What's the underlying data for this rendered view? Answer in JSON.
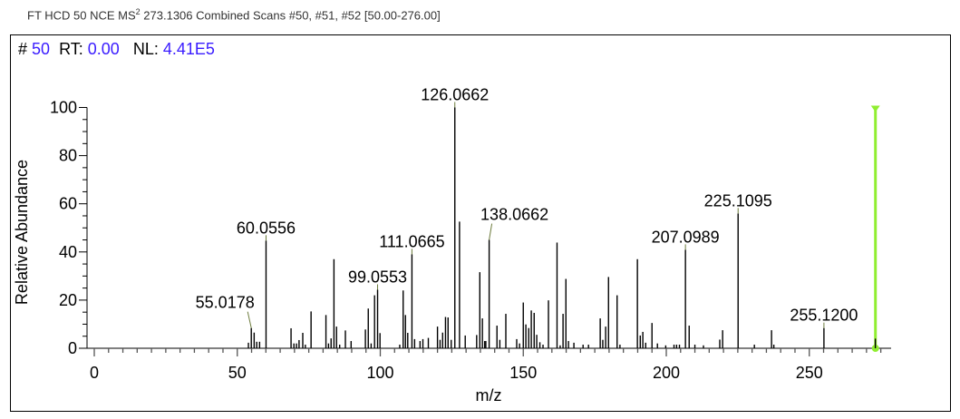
{
  "header": {
    "caption_prefix": "FT HCD 50 NCE MS",
    "caption_sup": "2",
    "caption_suffix": " 273.1306 Combined Scans #50, #51, #52 [50.00-276.00]"
  },
  "scan_info": {
    "scan_label": "#",
    "scan_value": "50",
    "rt_label": "RT:",
    "rt_value": "0.00",
    "nl_label": "NL:",
    "nl_value": "4.41E5"
  },
  "colors": {
    "peak": "#000000",
    "value_text": "#3a1cff",
    "precursor_marker": "#90ee30",
    "connector": "#6b7a3a"
  },
  "chart_data": {
    "type": "bar",
    "subtype": "mass-spectrum-stick",
    "xlabel": "m/z",
    "ylabel": "Relative Abundance",
    "xlim": [
      -3,
      278.6
    ],
    "ylim": [
      0,
      100
    ],
    "x_ticks": [
      "0",
      "50",
      "100",
      "150",
      "200",
      "250"
    ],
    "y_ticks": [
      "0",
      "20",
      "40",
      "60",
      "80",
      "100"
    ],
    "precursor_mz": 273.1306,
    "peaks": [
      [
        53.9,
        2.3
      ],
      [
        54.9,
        8.4
      ],
      [
        55.9,
        6.5
      ],
      [
        56.8,
        2.7
      ],
      [
        57.8,
        2.7
      ],
      [
        60.0556,
        44.7
      ],
      [
        68.8,
        8.3
      ],
      [
        69.8,
        2
      ],
      [
        70.7,
        2
      ],
      [
        71.6,
        3.4
      ],
      [
        72.9,
        6.4
      ],
      [
        73.8,
        1.5
      ],
      [
        75.8,
        15.3
      ],
      [
        81.0,
        13.8
      ],
      [
        81.9,
        2
      ],
      [
        82.8,
        4.1
      ],
      [
        83.8,
        37
      ],
      [
        84.7,
        9
      ],
      [
        85.8,
        1.5
      ],
      [
        87.8,
        7.4
      ],
      [
        89.8,
        3
      ],
      [
        94.8,
        7.8
      ],
      [
        95.8,
        16.5
      ],
      [
        96.8,
        2
      ],
      [
        98.0,
        22
      ],
      [
        99.0553,
        24.3
      ],
      [
        99.9,
        6.3
      ],
      [
        106.8,
        1.5
      ],
      [
        108.0,
        24
      ],
      [
        108.8,
        13.8
      ],
      [
        109.6,
        6.4
      ],
      [
        111.0665,
        39
      ],
      [
        112.0,
        3.8
      ],
      [
        113.9,
        3
      ],
      [
        114.9,
        3.8
      ],
      [
        116.8,
        4.3
      ],
      [
        120.0,
        9
      ],
      [
        120.9,
        3.5
      ],
      [
        121.8,
        6.5
      ],
      [
        122.8,
        13
      ],
      [
        123.7,
        12.8
      ],
      [
        124.8,
        3.5
      ],
      [
        126.0662,
        100
      ],
      [
        127.7,
        52.6
      ],
      [
        129.7,
        5.3
      ],
      [
        133.7,
        5.5
      ],
      [
        134.8,
        31.6
      ],
      [
        135.7,
        12.4
      ],
      [
        136.5,
        3
      ],
      [
        136.9,
        3
      ],
      [
        138.0662,
        45
      ],
      [
        140.8,
        9.4
      ],
      [
        141.8,
        3.5
      ],
      [
        143.9,
        14.3
      ],
      [
        147.7,
        3.8
      ],
      [
        148.7,
        2
      ],
      [
        150.0,
        19
      ],
      [
        150.9,
        9.9
      ],
      [
        151.9,
        8.4
      ],
      [
        152.8,
        15.7
      ],
      [
        153.8,
        14.7
      ],
      [
        154.7,
        5.6
      ],
      [
        155.8,
        2.5
      ],
      [
        156.9,
        1.5
      ],
      [
        158.8,
        19.9
      ],
      [
        161.8,
        43.9
      ],
      [
        162.9,
        1.2
      ],
      [
        163.9,
        14.3
      ],
      [
        164.9,
        28.8
      ],
      [
        165.8,
        3
      ],
      [
        167.7,
        2.3
      ],
      [
        170.9,
        1.5
      ],
      [
        172.8,
        1.5
      ],
      [
        176.9,
        12.4
      ],
      [
        177.8,
        3.5
      ],
      [
        178.8,
        9
      ],
      [
        179.8,
        29.6
      ],
      [
        182.8,
        22
      ],
      [
        183.8,
        1.5
      ],
      [
        189.9,
        37
      ],
      [
        190.9,
        5.3
      ],
      [
        191.8,
        6.8
      ],
      [
        192.8,
        2.3
      ],
      [
        195.0,
        10.5
      ],
      [
        196.9,
        2
      ],
      [
        199.8,
        1.2
      ],
      [
        202.7,
        1.5
      ],
      [
        203.6,
        1.5
      ],
      [
        204.6,
        1.5
      ],
      [
        206.7,
        40.9
      ],
      [
        208.0,
        9.4
      ],
      [
        210.0,
        1.5
      ],
      [
        213.0,
        1.2
      ],
      [
        218.7,
        3.6
      ],
      [
        219.7,
        7.5
      ],
      [
        225.1095,
        56
      ],
      [
        230.8,
        1.5
      ],
      [
        236.8,
        7.5
      ],
      [
        237.6,
        1.5
      ],
      [
        255.12,
        8.4
      ],
      [
        273.1,
        4
      ]
    ],
    "labels": [
      {
        "mz": 55.0178,
        "text": "55.0178"
      },
      {
        "mz": 60.0556,
        "text": "60.0556"
      },
      {
        "mz": 99.0553,
        "text": "99.0553"
      },
      {
        "mz": 111.0665,
        "text": "111.0665"
      },
      {
        "mz": 126.0662,
        "text": "126.0662"
      },
      {
        "mz": 138.0662,
        "text": "138.0662"
      },
      {
        "mz": 207.0989,
        "text": "207.0989"
      },
      {
        "mz": 225.1095,
        "text": "225.1095"
      },
      {
        "mz": 255.12,
        "text": "255.1200"
      }
    ]
  }
}
